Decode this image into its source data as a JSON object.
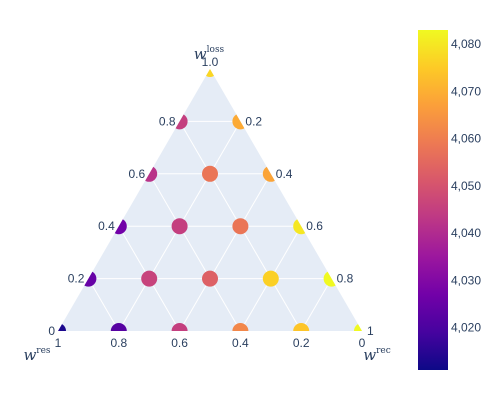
{
  "chart_data": {
    "type": "ternary-scatter",
    "axes": {
      "a": {
        "symbol": "w",
        "superscript": "loss",
        "ticks": [
          "0.2",
          "0.4",
          "0.6",
          "0.8",
          "1.0"
        ]
      },
      "b": {
        "symbol": "w",
        "superscript": "res",
        "ticks": [
          "1",
          "0.8",
          "0.6",
          "0.4",
          "0.2",
          "0"
        ]
      },
      "c": {
        "symbol": "w",
        "superscript": "rec",
        "ticks": [
          "0.2",
          "0.4",
          "0.6",
          "0.8",
          "1"
        ]
      },
      "corner_ticks": {
        "bottom_left_a": "0"
      }
    },
    "grid": true,
    "points": [
      {
        "a": 1.0,
        "b": 0.0,
        "c": 0.0,
        "value": 4077
      },
      {
        "a": 0.8,
        "b": 0.2,
        "c": 0.0,
        "value": 4045
      },
      {
        "a": 0.8,
        "b": 0.0,
        "c": 0.2,
        "value": 4069
      },
      {
        "a": 0.6,
        "b": 0.4,
        "c": 0.0,
        "value": 4042
      },
      {
        "a": 0.6,
        "b": 0.2,
        "c": 0.2,
        "value": 4058
      },
      {
        "a": 0.6,
        "b": 0.0,
        "c": 0.4,
        "value": 4068
      },
      {
        "a": 0.4,
        "b": 0.6,
        "c": 0.0,
        "value": 4027
      },
      {
        "a": 0.4,
        "b": 0.4,
        "c": 0.2,
        "value": 4045
      },
      {
        "a": 0.4,
        "b": 0.2,
        "c": 0.4,
        "value": 4058
      },
      {
        "a": 0.4,
        "b": 0.0,
        "c": 0.6,
        "value": 4080
      },
      {
        "a": 0.2,
        "b": 0.8,
        "c": 0.0,
        "value": 4025
      },
      {
        "a": 0.2,
        "b": 0.6,
        "c": 0.2,
        "value": 4046
      },
      {
        "a": 0.2,
        "b": 0.4,
        "c": 0.4,
        "value": 4053
      },
      {
        "a": 0.2,
        "b": 0.2,
        "c": 0.6,
        "value": 4076
      },
      {
        "a": 0.2,
        "b": 0.0,
        "c": 0.8,
        "value": 4083
      },
      {
        "a": 0.0,
        "b": 1.0,
        "c": 0.0,
        "value": 4013
      },
      {
        "a": 0.0,
        "b": 0.8,
        "c": 0.2,
        "value": 4022
      },
      {
        "a": 0.0,
        "b": 0.6,
        "c": 0.4,
        "value": 4045
      },
      {
        "a": 0.0,
        "b": 0.4,
        "c": 0.6,
        "value": 4062
      },
      {
        "a": 0.0,
        "b": 0.2,
        "c": 0.8,
        "value": 4074
      },
      {
        "a": 0.0,
        "b": 0.0,
        "c": 1.0,
        "value": 4084
      }
    ],
    "colorbar": {
      "range": [
        4011,
        4083
      ],
      "ticks": [
        "4,020",
        "4,030",
        "4,040",
        "4,050",
        "4,060",
        "4,070",
        "4,080"
      ],
      "colorscale": [
        "#0d0887",
        "#46039f",
        "#7201a8",
        "#9c179e",
        "#bd3786",
        "#d8576b",
        "#ed7953",
        "#fb9f3a",
        "#fdca26",
        "#f0f921"
      ]
    },
    "background_color": "#e5ecf6",
    "grid_color": "#ffffff"
  }
}
